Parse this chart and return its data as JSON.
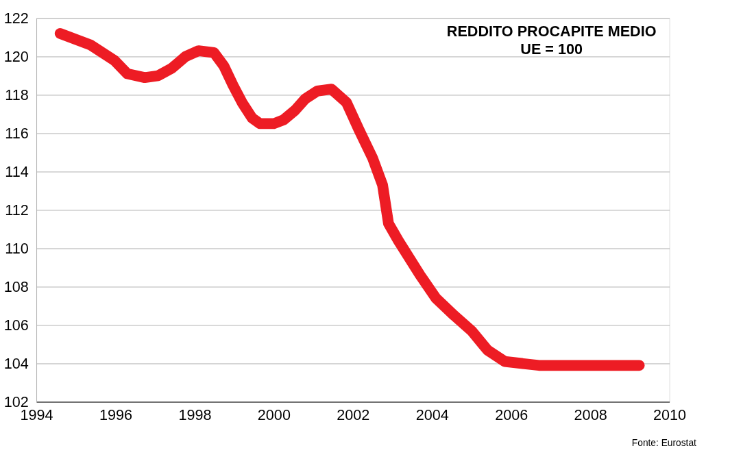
{
  "chart_data": {
    "type": "line",
    "title": "REDDITO PROCAPITE MEDIO",
    "subtitle": "UE = 100",
    "annotations": [
      "Fonte: Eurostat"
    ],
    "x": [
      1994.6,
      1995.37,
      1995.97,
      1996.3,
      1996.74,
      1997.08,
      1997.43,
      1997.77,
      1998.1,
      1998.49,
      1998.74,
      1998.97,
      1999.2,
      1999.45,
      1999.65,
      2000.0,
      2000.25,
      2000.54,
      2000.8,
      2001.1,
      2001.46,
      2001.84,
      2002.15,
      2002.5,
      2002.75,
      2002.9,
      2003.15,
      2003.7,
      2004.1,
      2004.56,
      2005.0,
      2005.4,
      2005.84,
      2006.7,
      2008.07,
      2009.24
    ],
    "series": [
      {
        "color": "#ed1c24",
        "values": [
          121.2,
          120.6,
          119.8,
          119.1,
          118.9,
          119.0,
          119.4,
          120.0,
          120.3,
          120.2,
          119.5,
          118.5,
          117.6,
          116.8,
          116.5,
          116.5,
          116.7,
          117.2,
          117.8,
          118.2,
          118.3,
          117.6,
          116.2,
          114.7,
          113.3,
          111.3,
          110.4,
          108.6,
          107.4,
          106.5,
          105.7,
          104.7,
          104.1,
          103.9,
          103.9,
          103.9
        ]
      }
    ],
    "xlim": [
      1994,
      2010
    ],
    "xticks": [
      1994,
      1996,
      1998,
      2000,
      2002,
      2004,
      2006,
      2008,
      2010
    ],
    "ylim": [
      102,
      122
    ],
    "yticks": [
      102,
      104,
      106,
      108,
      110,
      112,
      114,
      116,
      118,
      120,
      122
    ],
    "grid": "y",
    "line_style": "solid"
  }
}
